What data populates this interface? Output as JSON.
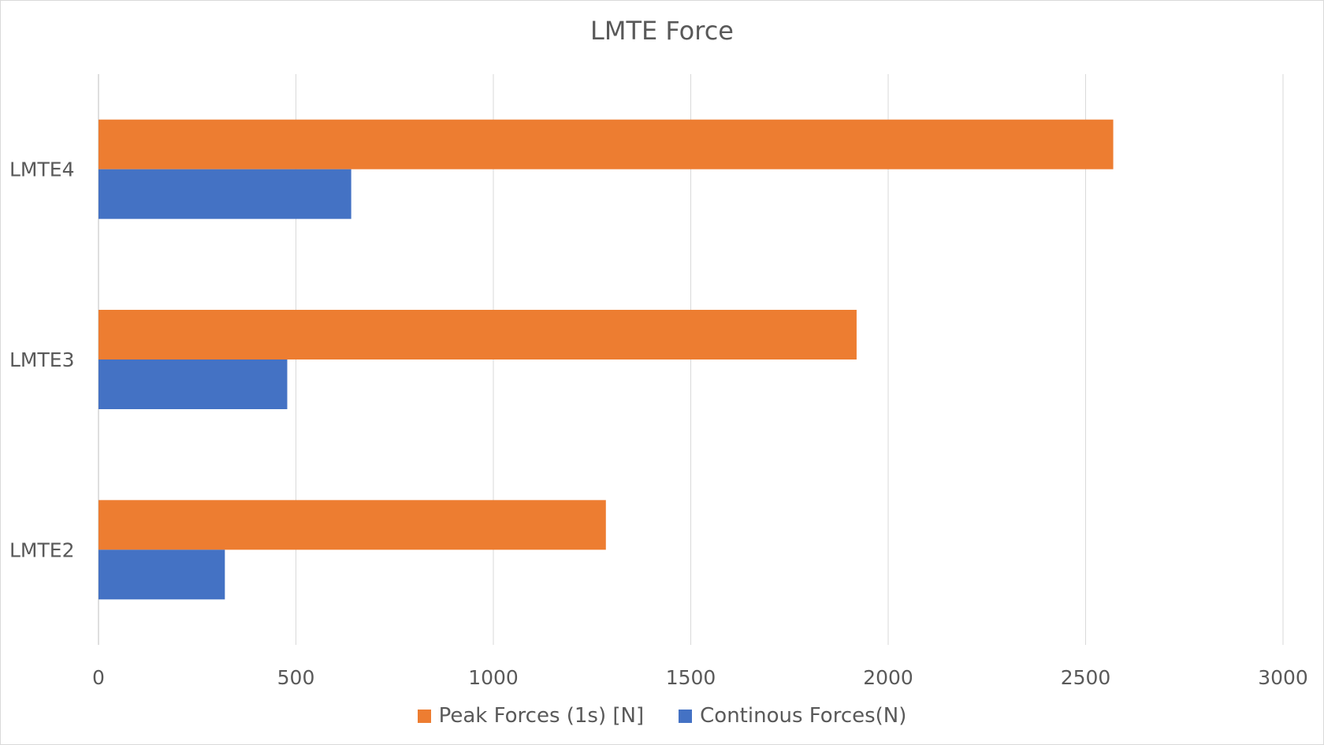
{
  "chart_data": {
    "type": "bar",
    "orientation": "horizontal",
    "title": "LMTE Force",
    "xlabel": "",
    "ylabel": "",
    "categories": [
      "LMTE4",
      "LMTE3",
      "LMTE2"
    ],
    "series": [
      {
        "name": "Peak Forces (1s) [N]",
        "color": "#ED7D31",
        "values": [
          2570,
          1920,
          1285
        ]
      },
      {
        "name": "Continous Forces(N)",
        "color": "#4472C4",
        "values": [
          640,
          478,
          320
        ]
      }
    ],
    "xlim": [
      0,
      3000
    ],
    "xticks": [
      "0",
      "500",
      "1000",
      "1500",
      "2000",
      "2500",
      "3000"
    ],
    "grid": true,
    "legend_position": "bottom"
  }
}
